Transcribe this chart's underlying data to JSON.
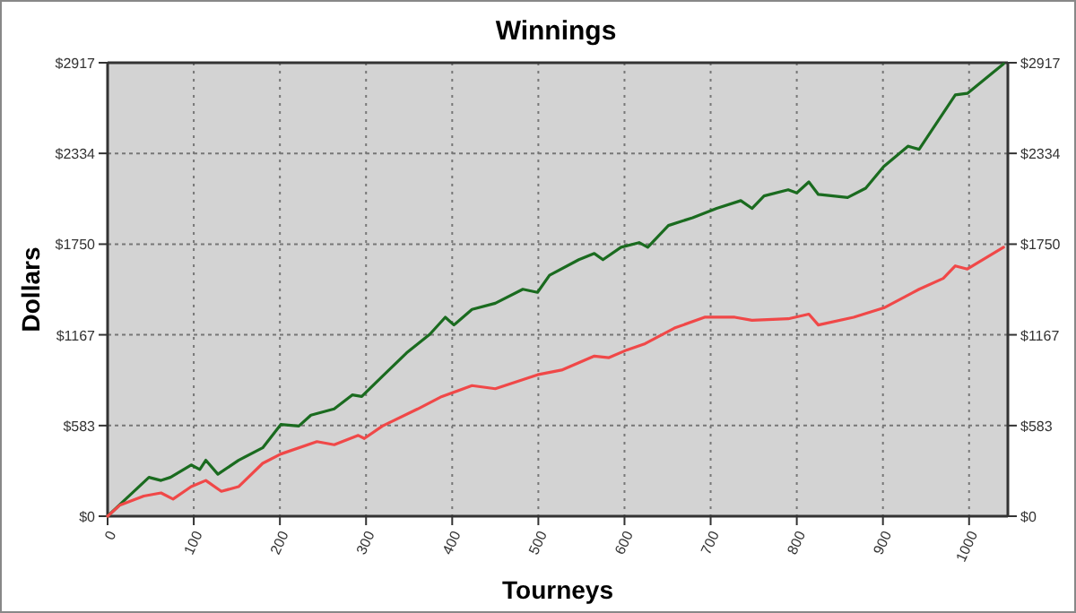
{
  "chart_data": {
    "type": "line",
    "title": "Winnings",
    "xlabel": "Tourneys",
    "ylabel": "Dollars",
    "xlim": [
      0,
      1045
    ],
    "xticks": [
      0,
      100,
      200,
      300,
      400,
      500,
      600,
      700,
      800,
      900,
      1000
    ],
    "ylim": [
      0,
      2917
    ],
    "yticks": [
      {
        "value": 0,
        "label": "$0"
      },
      {
        "value": 583,
        "label": "$583"
      },
      {
        "value": 1167,
        "label": "$1167"
      },
      {
        "value": 1750,
        "label": "$1750"
      },
      {
        "value": 2334,
        "label": "$2334"
      },
      {
        "value": 2917,
        "label": "$2917"
      }
    ],
    "y2lim": [
      0,
      2917
    ],
    "y2ticks": [
      {
        "value": 0,
        "label": "$0"
      },
      {
        "value": 583,
        "label": "$583"
      },
      {
        "value": 1167,
        "label": "$1167"
      },
      {
        "value": 1750,
        "label": "$1750"
      },
      {
        "value": 2334,
        "label": "$2334"
      },
      {
        "value": 2917,
        "label": "$2917"
      }
    ],
    "grid": true,
    "marker": "none",
    "line_style": "solid",
    "series": [
      {
        "color": "#1a6b1f",
        "x": [
          0,
          21,
          48,
          62,
          73,
          97,
          107,
          114,
          128,
          152,
          180,
          201,
          222,
          236,
          263,
          284,
          295,
          319,
          347,
          374,
          392,
          402,
          423,
          450,
          482,
          499,
          513,
          547,
          565,
          575,
          596,
          617,
          627,
          651,
          679,
          707,
          735,
          748,
          762,
          790,
          800,
          814,
          825,
          859,
          880,
          901,
          929,
          942,
          984,
          998,
          1040
        ],
        "values": [
          0,
          110,
          250,
          230,
          250,
          330,
          300,
          360,
          270,
          360,
          440,
          590,
          580,
          650,
          690,
          780,
          770,
          900,
          1050,
          1170,
          1280,
          1230,
          1330,
          1370,
          1460,
          1440,
          1550,
          1650,
          1690,
          1650,
          1730,
          1760,
          1730,
          1870,
          1920,
          1980,
          2030,
          1980,
          2060,
          2100,
          2080,
          2150,
          2070,
          2050,
          2110,
          2250,
          2380,
          2360,
          2710,
          2720,
          2910
        ]
      },
      {
        "color": "#f04848",
        "x": [
          0,
          14,
          42,
          62,
          76,
          97,
          114,
          132,
          152,
          180,
          201,
          243,
          263,
          291,
          298,
          319,
          360,
          388,
          423,
          450,
          499,
          527,
          565,
          582,
          603,
          624,
          658,
          693,
          728,
          748,
          790,
          814,
          825,
          866,
          901,
          942,
          970,
          984,
          998,
          1040
        ],
        "values": [
          0,
          70,
          130,
          150,
          110,
          190,
          230,
          160,
          190,
          340,
          400,
          480,
          460,
          520,
          500,
          580,
          690,
          770,
          840,
          820,
          910,
          940,
          1030,
          1020,
          1070,
          1110,
          1210,
          1280,
          1280,
          1260,
          1270,
          1300,
          1230,
          1280,
          1340,
          1460,
          1530,
          1610,
          1590,
          1730
        ]
      }
    ]
  }
}
